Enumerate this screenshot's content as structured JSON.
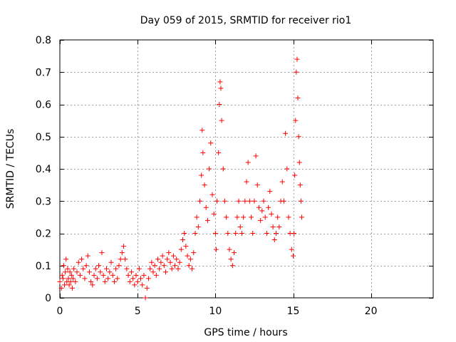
{
  "chart_data": {
    "type": "scatter",
    "title": "Day 059 of 2015, SRMTID for receiver rio1",
    "xlabel": "GPS time / hours",
    "ylabel": "SRMTID / TECUs",
    "xlim": [
      0,
      24
    ],
    "ylim": [
      0,
      0.8
    ],
    "xticks": [
      0,
      5,
      10,
      15,
      20
    ],
    "yticks": [
      0,
      0.1,
      0.2,
      0.3,
      0.4,
      0.5,
      0.6,
      0.7,
      0.8
    ],
    "xtick_labels": [
      "0",
      "5",
      "10",
      "15",
      "20"
    ],
    "ytick_labels": [
      "0",
      "0.1",
      "0.2",
      "0.3",
      "0.4",
      "0.5",
      "0.6",
      "0.7",
      "0.8"
    ],
    "grid": true,
    "marker": "+",
    "marker_color": "#ff0000",
    "series": [
      {
        "name": "SRMTID",
        "color": "#ff0000",
        "points": [
          [
            0.0,
            0.05
          ],
          [
            0.1,
            0.03
          ],
          [
            0.15,
            0.07
          ],
          [
            0.2,
            0.06
          ],
          [
            0.25,
            0.1
          ],
          [
            0.3,
            0.04
          ],
          [
            0.35,
            0.08
          ],
          [
            0.4,
            0.12
          ],
          [
            0.45,
            0.05
          ],
          [
            0.5,
            0.09
          ],
          [
            0.55,
            0.06
          ],
          [
            0.6,
            0.04
          ],
          [
            0.65,
            0.08
          ],
          [
            0.7,
            0.05
          ],
          [
            0.75,
            0.07
          ],
          [
            0.8,
            0.03
          ],
          [
            0.85,
            0.06
          ],
          [
            0.9,
            0.09
          ],
          [
            1.0,
            0.05
          ],
          [
            1.1,
            0.08
          ],
          [
            1.2,
            0.11
          ],
          [
            1.3,
            0.07
          ],
          [
            1.4,
            0.12
          ],
          [
            1.5,
            0.09
          ],
          [
            1.6,
            0.06
          ],
          [
            1.7,
            0.1
          ],
          [
            1.8,
            0.13
          ],
          [
            1.9,
            0.08
          ],
          [
            2.0,
            0.05
          ],
          [
            2.1,
            0.04
          ],
          [
            2.2,
            0.07
          ],
          [
            2.3,
            0.09
          ],
          [
            2.4,
            0.06
          ],
          [
            2.5,
            0.1
          ],
          [
            2.6,
            0.08
          ],
          [
            2.7,
            0.14
          ],
          [
            2.8,
            0.07
          ],
          [
            2.9,
            0.05
          ],
          [
            3.0,
            0.09
          ],
          [
            3.1,
            0.06
          ],
          [
            3.2,
            0.08
          ],
          [
            3.3,
            0.11
          ],
          [
            3.4,
            0.07
          ],
          [
            3.5,
            0.05
          ],
          [
            3.6,
            0.09
          ],
          [
            3.7,
            0.06
          ],
          [
            3.8,
            0.1
          ],
          [
            3.9,
            0.12
          ],
          [
            4.0,
            0.14
          ],
          [
            4.1,
            0.16
          ],
          [
            4.2,
            0.12
          ],
          [
            4.3,
            0.09
          ],
          [
            4.4,
            0.07
          ],
          [
            4.5,
            0.05
          ],
          [
            4.6,
            0.08
          ],
          [
            4.7,
            0.06
          ],
          [
            4.8,
            0.04
          ],
          [
            4.9,
            0.07
          ],
          [
            5.0,
            0.05
          ],
          [
            5.1,
            0.09
          ],
          [
            5.2,
            0.06
          ],
          [
            5.3,
            0.04
          ],
          [
            5.4,
            0.07
          ],
          [
            5.5,
            0.0
          ],
          [
            5.6,
            0.03
          ],
          [
            5.7,
            0.06
          ],
          [
            5.8,
            0.09
          ],
          [
            5.9,
            0.11
          ],
          [
            6.0,
            0.08
          ],
          [
            6.1,
            0.1
          ],
          [
            6.2,
            0.07
          ],
          [
            6.3,
            0.12
          ],
          [
            6.4,
            0.09
          ],
          [
            6.5,
            0.11
          ],
          [
            6.6,
            0.13
          ],
          [
            6.7,
            0.1
          ],
          [
            6.8,
            0.08
          ],
          [
            6.9,
            0.12
          ],
          [
            7.0,
            0.14
          ],
          [
            7.1,
            0.11
          ],
          [
            7.2,
            0.09
          ],
          [
            7.3,
            0.13
          ],
          [
            7.4,
            0.1
          ],
          [
            7.5,
            0.12
          ],
          [
            7.6,
            0.09
          ],
          [
            7.7,
            0.11
          ],
          [
            7.8,
            0.15
          ],
          [
            7.9,
            0.18
          ],
          [
            8.0,
            0.2
          ],
          [
            8.1,
            0.16
          ],
          [
            8.2,
            0.13
          ],
          [
            8.3,
            0.1
          ],
          [
            8.4,
            0.12
          ],
          [
            8.5,
            0.09
          ],
          [
            8.6,
            0.14
          ],
          [
            8.7,
            0.2
          ],
          [
            8.8,
            0.25
          ],
          [
            8.9,
            0.22
          ],
          [
            9.0,
            0.3
          ],
          [
            9.1,
            0.38
          ],
          [
            9.15,
            0.52
          ],
          [
            9.2,
            0.45
          ],
          [
            9.3,
            0.35
          ],
          [
            9.4,
            0.28
          ],
          [
            9.5,
            0.24
          ],
          [
            9.6,
            0.4
          ],
          [
            9.7,
            0.48
          ],
          [
            9.8,
            0.32
          ],
          [
            9.9,
            0.26
          ],
          [
            10.0,
            0.2
          ],
          [
            10.05,
            0.15
          ],
          [
            10.1,
            0.3
          ],
          [
            10.2,
            0.45
          ],
          [
            10.25,
            0.6
          ],
          [
            10.3,
            0.67
          ],
          [
            10.35,
            0.65
          ],
          [
            10.4,
            0.55
          ],
          [
            10.5,
            0.4
          ],
          [
            10.6,
            0.3
          ],
          [
            10.7,
            0.25
          ],
          [
            10.8,
            0.2
          ],
          [
            10.9,
            0.15
          ],
          [
            11.0,
            0.12
          ],
          [
            11.1,
            0.1
          ],
          [
            11.2,
            0.14
          ],
          [
            11.3,
            0.2
          ],
          [
            11.4,
            0.25
          ],
          [
            11.5,
            0.3
          ],
          [
            11.6,
            0.22
          ],
          [
            11.7,
            0.2
          ],
          [
            11.8,
            0.25
          ],
          [
            11.9,
            0.3
          ],
          [
            12.0,
            0.36
          ],
          [
            12.1,
            0.42
          ],
          [
            12.2,
            0.3
          ],
          [
            12.3,
            0.25
          ],
          [
            12.4,
            0.2
          ],
          [
            12.5,
            0.3
          ],
          [
            12.6,
            0.44
          ],
          [
            12.7,
            0.35
          ],
          [
            12.8,
            0.28
          ],
          [
            12.9,
            0.24
          ],
          [
            13.0,
            0.27
          ],
          [
            13.1,
            0.3
          ],
          [
            13.2,
            0.25
          ],
          [
            13.3,
            0.2
          ],
          [
            13.4,
            0.28
          ],
          [
            13.5,
            0.33
          ],
          [
            13.6,
            0.26
          ],
          [
            13.7,
            0.22
          ],
          [
            13.8,
            0.18
          ],
          [
            13.9,
            0.2
          ],
          [
            14.0,
            0.25
          ],
          [
            14.1,
            0.22
          ],
          [
            14.2,
            0.3
          ],
          [
            14.3,
            0.36
          ],
          [
            14.4,
            0.3
          ],
          [
            14.5,
            0.51
          ],
          [
            14.6,
            0.4
          ],
          [
            14.7,
            0.25
          ],
          [
            14.8,
            0.2
          ],
          [
            14.9,
            0.15
          ],
          [
            15.0,
            0.13
          ],
          [
            15.05,
            0.2
          ],
          [
            15.1,
            0.38
          ],
          [
            15.15,
            0.55
          ],
          [
            15.2,
            0.7
          ],
          [
            15.25,
            0.74
          ],
          [
            15.3,
            0.62
          ],
          [
            15.35,
            0.5
          ],
          [
            15.4,
            0.42
          ],
          [
            15.45,
            0.35
          ],
          [
            15.5,
            0.3
          ],
          [
            15.55,
            0.25
          ]
        ]
      }
    ]
  }
}
